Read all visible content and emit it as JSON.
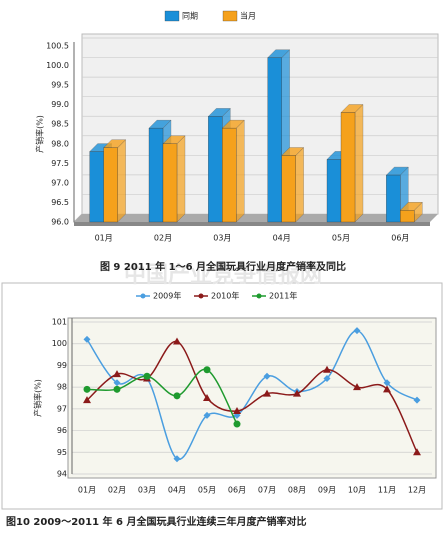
{
  "watermark": "中国产业竞争情报网",
  "chart_data": [
    {
      "type": "bar",
      "title": "图 9 2011 年 1～6 月全国玩具行业月度产销率及同比",
      "y_label": "产销率(%)",
      "categories": [
        "01月",
        "02月",
        "03月",
        "04月",
        "05月",
        "06月"
      ],
      "series": [
        {
          "name": "同期",
          "color": "#1a8fd8",
          "values": [
            97.8,
            98.4,
            98.7,
            100.2,
            97.6,
            97.2
          ]
        },
        {
          "name": "当月",
          "color": "#f5a11c",
          "values": [
            97.9,
            98.0,
            98.4,
            97.7,
            98.8,
            96.3
          ]
        }
      ],
      "ylim": [
        96,
        100.5
      ],
      "yticks": [
        {
          "value": 96,
          "label": "96.0"
        },
        96.5,
        {
          "value": 97,
          "label": "97.0"
        },
        97.5,
        {
          "value": 98,
          "label": "98.0"
        },
        98.5,
        {
          "value": 99,
          "label": "99.0"
        },
        99.5,
        {
          "value": 100,
          "label": "100.0"
        },
        100.5
      ],
      "grid": true,
      "legend": "top"
    },
    {
      "type": "line",
      "title": "图10 2009～2011 年 6 月全国玩具行业连续三年月度产销率对比",
      "y_label": "产销率(%)",
      "categories": [
        "01月",
        "02月",
        "03月",
        "04月",
        "05月",
        "06月",
        "07月",
        "08月",
        "09月",
        "10月",
        "11月",
        "12月"
      ],
      "series": [
        {
          "name": "2009年",
          "color": "#4a9ee0",
          "marker": "diamond",
          "values": [
            100.2,
            98.2,
            98.4,
            94.7,
            96.7,
            96.7,
            98.5,
            97.8,
            98.4,
            100.6,
            98.2,
            97.4
          ]
        },
        {
          "name": "2010年",
          "color": "#8b1a1a",
          "marker": "triangle",
          "values": [
            97.4,
            98.6,
            98.4,
            100.1,
            97.5,
            96.9,
            97.7,
            97.7,
            98.8,
            98.0,
            97.9,
            95.0
          ]
        },
        {
          "name": "2011年",
          "color": "#1e9a2e",
          "marker": "circle",
          "values": [
            97.9,
            97.9,
            98.5,
            97.6,
            98.8,
            96.3,
            null,
            null,
            null,
            null,
            null,
            null
          ]
        }
      ],
      "ylim": [
        94,
        101
      ],
      "yticks": [
        94,
        95,
        96,
        97,
        98,
        99,
        100,
        101
      ],
      "grid": true,
      "legend": "top"
    }
  ]
}
